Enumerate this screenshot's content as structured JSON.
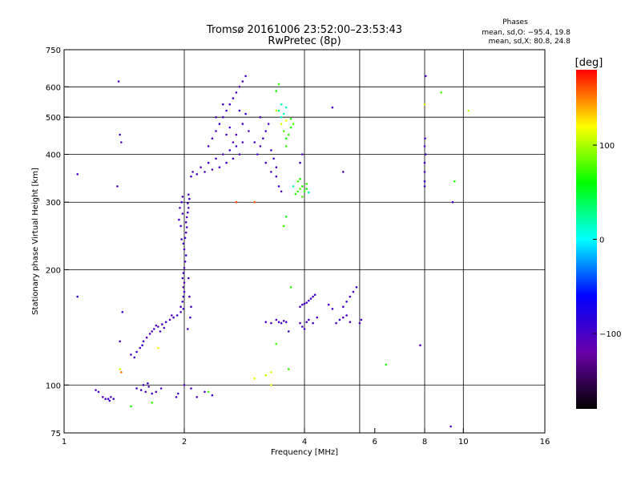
{
  "header": {
    "title": "Tromsø 20161006 23:52:00–23:53:43",
    "subtitle": "RwPretec (8p)",
    "phases_label": "Phases",
    "stat_o": "mean, sd,O: −95.4, 19.8",
    "stat_x": "mean, sd,X:  80.8, 24.8"
  },
  "colorbar": {
    "unit_label": "[deg]",
    "ticks": [
      {
        "label": "100",
        "value": 100
      },
      {
        "label": "0",
        "value": 0
      },
      {
        "label": "−100",
        "value": -100
      }
    ],
    "range": [
      -180,
      180
    ],
    "stops": [
      "#000000",
      "#6a00a8",
      "#0000ff",
      "#00ffff",
      "#00ff00",
      "#ffff00",
      "#ff0000"
    ]
  },
  "chart_data": {
    "type": "scatter",
    "title": "Tromsø 20161006 23:52:00–23:53:43",
    "subtitle": "RwPretec (8p)",
    "xlabel": "Frequency [MHz]",
    "ylabel": "Stationary phase Virtual Height [km]",
    "xscale": "log",
    "yscale": "log",
    "xlim": [
      1,
      16
    ],
    "ylim": [
      75,
      750
    ],
    "xticks": [
      {
        "label": "1",
        "value": 1
      },
      {
        "label": "2",
        "value": 2
      },
      {
        "label": "4",
        "value": 4
      },
      {
        "label": "6",
        "value": 6
      },
      {
        "label": "8",
        "value": 8
      },
      {
        "label": "10",
        "value": 10
      },
      {
        "label": "16",
        "value": 16
      }
    ],
    "xgrid": [
      2,
      4,
      5.5,
      8,
      10
    ],
    "yticks": [
      {
        "label": "75",
        "value": 75
      },
      {
        "label": "100",
        "value": 100
      },
      {
        "label": "200",
        "value": 200
      },
      {
        "label": "300",
        "value": 300
      },
      {
        "label": "400",
        "value": 400
      },
      {
        "label": "500",
        "value": 500
      },
      {
        "label": "600",
        "value": 600
      },
      {
        "label": "750",
        "value": 750
      }
    ],
    "ygrid": [
      100,
      200,
      300,
      400,
      500,
      600
    ],
    "color_by": "phase_deg",
    "series": [
      {
        "points": [
          [
            1.25,
            93
          ],
          [
            1.27,
            92
          ],
          [
            1.29,
            92
          ],
          [
            1.31,
            93
          ],
          [
            1.33,
            92
          ],
          [
            1.22,
            96
          ],
          [
            1.2,
            97
          ],
          [
            1.3,
            91
          ],
          [
            1.52,
            98
          ],
          [
            1.56,
            97
          ],
          [
            1.58,
            100
          ],
          [
            1.6,
            96
          ],
          [
            1.63,
            99
          ],
          [
            1.66,
            95
          ],
          [
            1.7,
            96
          ],
          [
            1.75,
            98
          ],
          [
            1.62,
            101
          ],
          [
            1.47,
            120
          ],
          [
            1.5,
            118
          ],
          [
            1.52,
            122
          ],
          [
            1.55,
            125
          ],
          [
            1.58,
            130
          ],
          [
            1.61,
            133
          ],
          [
            1.64,
            136
          ],
          [
            1.68,
            140
          ],
          [
            1.72,
            142
          ],
          [
            1.76,
            144
          ],
          [
            1.8,
            146
          ],
          [
            1.84,
            148
          ],
          [
            1.88,
            150
          ],
          [
            1.92,
            152
          ],
          [
            1.96,
            155
          ],
          [
            1.99,
            158
          ],
          [
            1.66,
            138
          ],
          [
            1.7,
            143
          ],
          [
            1.78,
            141
          ],
          [
            1.86,
            152
          ],
          [
            1.74,
            138
          ],
          [
            1.57,
            127
          ],
          [
            1.96,
            160
          ],
          [
            1.98,
            165
          ],
          [
            1.99,
            170
          ],
          [
            2.0,
            175
          ],
          [
            1.99,
            180
          ],
          [
            2.0,
            185
          ],
          [
            1.98,
            190
          ],
          [
            1.99,
            196
          ],
          [
            2.0,
            202
          ],
          [
            2.01,
            210
          ],
          [
            2.02,
            218
          ],
          [
            2.0,
            226
          ],
          [
            1.99,
            234
          ],
          [
            2.01,
            242
          ],
          [
            2.02,
            250
          ],
          [
            2.03,
            258
          ],
          [
            2.02,
            266
          ],
          [
            2.03,
            274
          ],
          [
            2.04,
            282
          ],
          [
            2.05,
            290
          ],
          [
            2.04,
            298
          ],
          [
            2.06,
            306
          ],
          [
            2.05,
            314
          ],
          [
            1.97,
            240
          ],
          [
            1.96,
            260
          ],
          [
            1.98,
            280
          ],
          [
            1.97,
            300
          ],
          [
            1.98,
            310
          ],
          [
            1.95,
            290
          ],
          [
            1.94,
            270
          ],
          [
            2.06,
            170
          ],
          [
            2.05,
            190
          ],
          [
            2.07,
            150
          ],
          [
            2.04,
            140
          ],
          [
            2.08,
            160
          ],
          [
            2.08,
            350
          ],
          [
            2.1,
            360
          ],
          [
            2.15,
            355
          ],
          [
            2.2,
            370
          ],
          [
            2.25,
            360
          ],
          [
            2.3,
            380
          ],
          [
            2.35,
            365
          ],
          [
            2.4,
            390
          ],
          [
            2.45,
            370
          ],
          [
            2.5,
            400
          ],
          [
            2.55,
            380
          ],
          [
            2.6,
            410
          ],
          [
            2.65,
            390
          ],
          [
            2.7,
            420
          ],
          [
            2.75,
            400
          ],
          [
            2.8,
            430
          ],
          [
            2.3,
            420
          ],
          [
            2.35,
            440
          ],
          [
            2.4,
            460
          ],
          [
            2.45,
            480
          ],
          [
            2.5,
            500
          ],
          [
            2.55,
            520
          ],
          [
            2.6,
            540
          ],
          [
            2.65,
            560
          ],
          [
            2.7,
            580
          ],
          [
            2.75,
            600
          ],
          [
            2.8,
            620
          ],
          [
            2.85,
            640
          ],
          [
            2.4,
            500
          ],
          [
            2.5,
            540
          ],
          [
            2.6,
            470
          ],
          [
            2.7,
            450
          ],
          [
            2.8,
            480
          ],
          [
            2.85,
            510
          ],
          [
            2.9,
            460
          ],
          [
            2.75,
            520
          ],
          [
            2.65,
            430
          ],
          [
            2.55,
            450
          ],
          [
            3.05,
            400
          ],
          [
            3.1,
            420
          ],
          [
            3.15,
            440
          ],
          [
            3.2,
            460
          ],
          [
            3.25,
            480
          ],
          [
            3.0,
            430
          ],
          [
            3.3,
            410
          ],
          [
            3.1,
            500
          ],
          [
            3.2,
            380
          ],
          [
            3.3,
            360
          ],
          [
            3.4,
            350
          ],
          [
            3.45,
            330
          ],
          [
            3.5,
            320
          ],
          [
            3.4,
            370
          ],
          [
            3.35,
            390
          ],
          [
            3.4,
            148
          ],
          [
            3.45,
            146
          ],
          [
            3.5,
            145
          ],
          [
            3.55,
            147
          ],
          [
            3.6,
            146
          ],
          [
            3.3,
            145
          ],
          [
            3.2,
            146
          ],
          [
            3.65,
            138
          ],
          [
            3.9,
            160
          ],
          [
            3.95,
            162
          ],
          [
            4.0,
            163
          ],
          [
            4.05,
            164
          ],
          [
            4.1,
            166
          ],
          [
            4.15,
            168
          ],
          [
            4.2,
            170
          ],
          [
            4.25,
            172
          ],
          [
            3.9,
            145
          ],
          [
            3.95,
            142
          ],
          [
            4.0,
            140
          ],
          [
            4.05,
            146
          ],
          [
            4.1,
            148
          ],
          [
            4.2,
            145
          ],
          [
            4.3,
            150
          ],
          [
            4.8,
            145
          ],
          [
            4.9,
            148
          ],
          [
            5.0,
            150
          ],
          [
            5.1,
            152
          ],
          [
            5.2,
            146
          ],
          [
            5.0,
            160
          ],
          [
            5.1,
            165
          ],
          [
            5.2,
            170
          ],
          [
            5.3,
            175
          ],
          [
            5.4,
            180
          ],
          [
            5.5,
            145
          ],
          [
            5.55,
            148
          ],
          [
            4.7,
            158
          ],
          [
            4.6,
            162
          ],
          [
            8.0,
            340
          ],
          [
            8.0,
            360
          ],
          [
            8.0,
            380
          ],
          [
            8.05,
            400
          ],
          [
            8.0,
            420
          ],
          [
            8.02,
            440
          ],
          [
            8.0,
            330
          ],
          [
            8.05,
            640
          ],
          [
            1.08,
            355
          ],
          [
            1.08,
            170
          ],
          [
            1.37,
            620
          ],
          [
            1.38,
            450
          ],
          [
            1.39,
            430
          ],
          [
            1.36,
            330
          ],
          [
            1.4,
            155
          ],
          [
            1.38,
            130
          ],
          [
            1.91,
            93
          ],
          [
            1.93,
            95
          ],
          [
            2.15,
            93
          ],
          [
            2.25,
            96
          ],
          [
            2.35,
            94
          ],
          [
            2.0,
            100
          ],
          [
            2.08,
            98
          ],
          [
            7.8,
            127
          ],
          [
            9.3,
            78
          ],
          [
            9.4,
            300
          ],
          [
            5.0,
            360
          ],
          [
            4.7,
            530
          ],
          [
            3.9,
            380
          ],
          [
            3.95,
            400
          ]
        ],
        "phase": -100
      },
      {
        "points": [
          [
            3.6,
            440
          ],
          [
            3.65,
            450
          ],
          [
            3.55,
            460
          ],
          [
            3.7,
            470
          ],
          [
            3.6,
            420
          ],
          [
            3.75,
            480
          ],
          [
            3.7,
            495
          ],
          [
            3.85,
            320
          ],
          [
            3.9,
            325
          ],
          [
            3.95,
            330
          ],
          [
            4.0,
            320
          ],
          [
            4.05,
            325
          ],
          [
            3.8,
            315
          ],
          [
            3.85,
            340
          ],
          [
            3.9,
            345
          ],
          [
            4.05,
            335
          ],
          [
            3.95,
            310
          ],
          [
            3.4,
            585
          ],
          [
            3.45,
            610
          ],
          [
            8.8,
            580
          ],
          [
            9.5,
            340
          ],
          [
            3.55,
            260
          ],
          [
            3.6,
            275
          ],
          [
            3.7,
            180
          ],
          [
            3.4,
            128
          ],
          [
            1.47,
            88
          ],
          [
            1.66,
            90
          ],
          [
            2.3,
            96
          ],
          [
            6.4,
            113
          ],
          [
            3.65,
            110
          ]
        ],
        "phase": 70
      },
      {
        "points": [
          [
            3.5,
            500
          ],
          [
            3.55,
            510
          ],
          [
            3.45,
            520
          ],
          [
            3.6,
            530
          ],
          [
            3.5,
            540
          ],
          [
            4.1,
            318
          ],
          [
            3.75,
            330
          ]
        ],
        "phase": 20
      },
      {
        "points": [
          [
            3.4,
            520
          ],
          [
            3.5,
            480
          ],
          [
            3.6,
            490
          ],
          [
            10.3,
            520
          ],
          [
            1.38,
            110
          ],
          [
            3.0,
            104
          ],
          [
            3.2,
            106
          ],
          [
            3.3,
            108
          ],
          [
            1.72,
            125
          ],
          [
            8.0,
            540
          ],
          [
            3.3,
            100
          ]
        ],
        "phase": 110
      },
      {
        "points": [
          [
            1.39,
            108
          ],
          [
            3.0,
            300
          ],
          [
            2.7,
            300
          ]
        ],
        "phase": 160
      }
    ]
  }
}
